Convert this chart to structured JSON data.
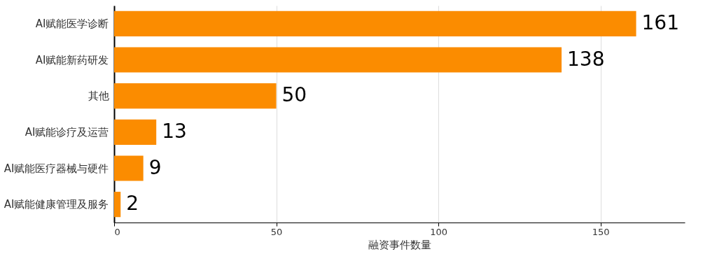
{
  "chart_data": {
    "type": "bar",
    "orientation": "horizontal",
    "categories": [
      "AI赋能医学诊断",
      "AI赋能新药研发",
      "其他",
      "AI赋能诊疗及运营",
      "AI赋能医疗器械与硬件",
      "AI赋能健康管理及服务"
    ],
    "values": [
      161,
      138,
      50,
      13,
      9,
      2
    ],
    "color": "#fb8c00",
    "xlabel": "融资事件数量",
    "xlim": [
      0,
      176
    ],
    "xticks": [
      0,
      50,
      100,
      150
    ],
    "grid": "x",
    "data_labels": true
  }
}
